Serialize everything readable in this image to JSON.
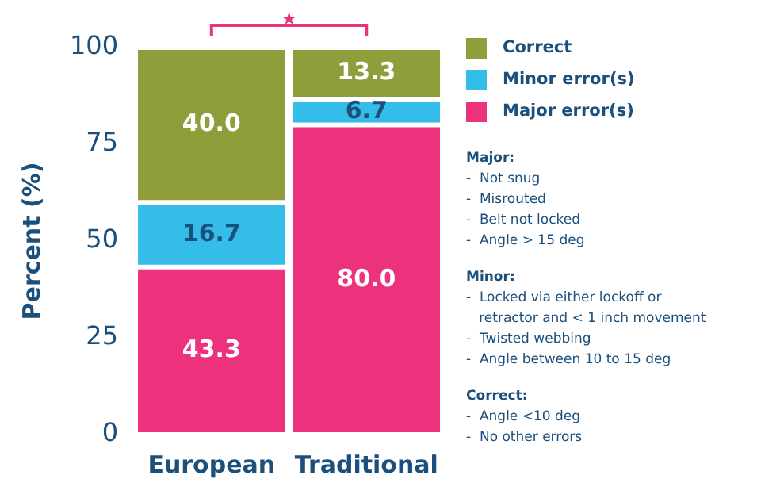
{
  "chart_data": {
    "type": "bar",
    "stacked": true,
    "categories": [
      "European",
      "Traditional"
    ],
    "series": [
      {
        "name": "Major error(s)",
        "color": "#ec327d",
        "values": [
          43.3,
          80.0
        ],
        "value_labels": [
          "43.3",
          "80.0"
        ]
      },
      {
        "name": "Minor error(s)",
        "color": "#35bde9",
        "values": [
          16.7,
          6.7
        ],
        "value_labels": [
          "16.7",
          "6.7"
        ]
      },
      {
        "name": "Correct",
        "color": "#8f9e3b",
        "values": [
          40.0,
          13.3
        ],
        "value_labels": [
          "40.0",
          "13.3"
        ]
      }
    ],
    "ylabel": "Percent (%)",
    "ylim": [
      0,
      100
    ],
    "yticks": [
      0,
      25,
      50,
      75,
      100
    ],
    "grid": false,
    "legend": "right",
    "annotations": [
      "★",
      "Major:\n-  Not snug\n-  Misrouted\n-  Belt not locked\n-  Angle > 15 deg",
      "Minor:\n-  Locked via either lockoff or\n   retractor and < 1 inch movement\n-  Twisted webbing\n-  Angle between 10 to 15 deg",
      "Correct:\n-  Angle <10 deg\n-  No other errors"
    ]
  }
}
